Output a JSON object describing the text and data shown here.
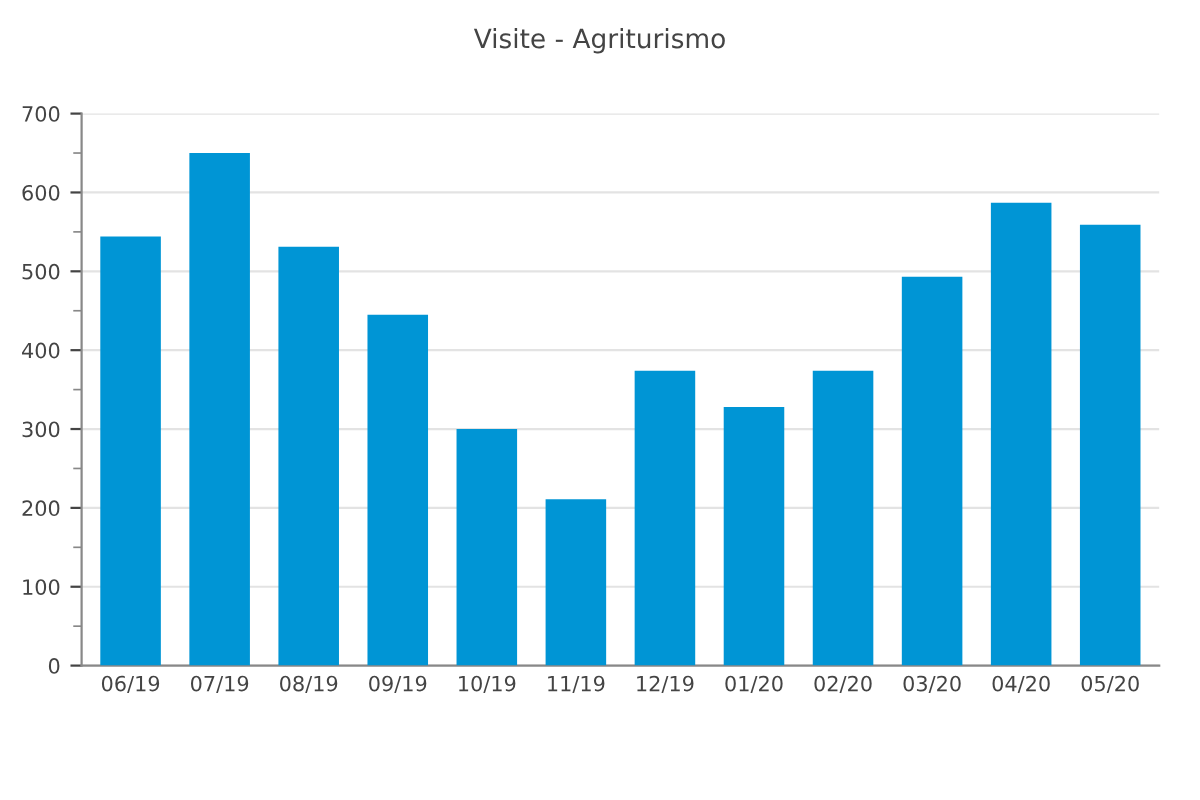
{
  "chart_data": {
    "type": "bar",
    "title": "Visite - Agriturismo",
    "categories": [
      "06/19",
      "07/19",
      "08/19",
      "09/19",
      "10/19",
      "11/19",
      "12/19",
      "01/20",
      "02/20",
      "03/20",
      "04/20",
      "05/20"
    ],
    "values": [
      544,
      650,
      531,
      445,
      300,
      211,
      374,
      328,
      374,
      493,
      587,
      559
    ],
    "color": "#0095d5",
    "ylim": [
      0,
      700
    ],
    "yticks": [
      0,
      100,
      200,
      300,
      400,
      500,
      600,
      700
    ],
    "grid": "y",
    "legend": false
  }
}
